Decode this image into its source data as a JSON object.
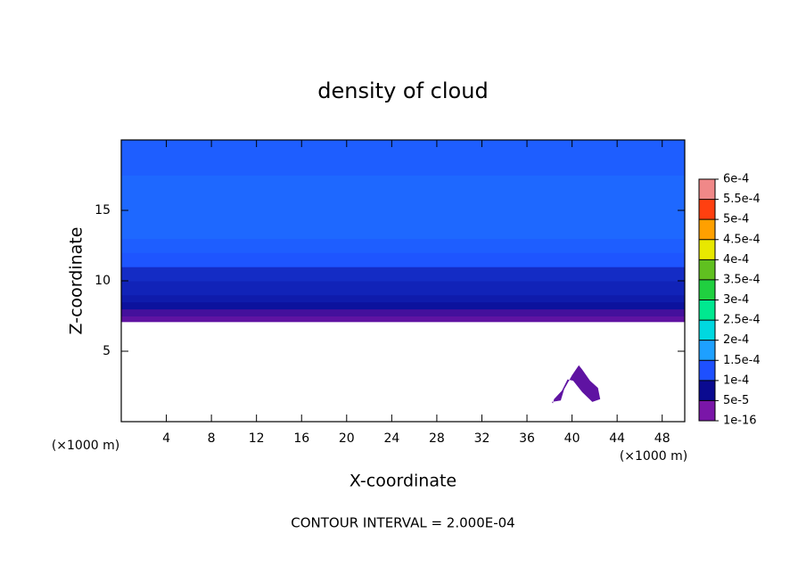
{
  "chart_data": {
    "type": "contour",
    "title": "density of cloud",
    "xlabel": "X-coordinate",
    "ylabel": "Z-coordinate",
    "x_unit": "(×1000 m)",
    "y_unit": "(×1000 m)",
    "footer": "CONTOUR INTERVAL = 2.000E-04",
    "xlim": [
      0,
      50
    ],
    "ylim": [
      0,
      20
    ],
    "xticks": [
      4,
      8,
      12,
      16,
      20,
      24,
      28,
      32,
      36,
      40,
      44,
      48
    ],
    "yticks": [
      5,
      10,
      15
    ],
    "profile": {
      "z": [
        7.1,
        7.5,
        8.0,
        8.5,
        9.0,
        10.0,
        11.0,
        12.0,
        13.0,
        17.5,
        20
      ],
      "values": [
        2e-05,
        4e-05,
        6e-05,
        7e-05,
        8e-05,
        9e-05,
        0.000105,
        0.000115,
        0.000125,
        0.000115
      ]
    },
    "patches": [
      {
        "x": [
          38.2,
          39.0,
          39.3,
          40.0,
          40.6,
          40.9,
          41.6,
          42.3,
          42.5,
          41.8,
          40.9,
          40.1,
          39.6,
          39.1,
          38.4,
          38.3
        ],
        "z": [
          1.4,
          1.5,
          2.3,
          3.3,
          4.0,
          3.7,
          2.9,
          2.4,
          1.6,
          1.4,
          2.1,
          2.9,
          3.0,
          2.2,
          1.6,
          1.3
        ],
        "value": 2e-05
      }
    ],
    "colorbar": {
      "ticks": [
        {
          "value": 1e-16,
          "label": "1e-16"
        },
        {
          "value": 5e-05,
          "label": "5e-5"
        },
        {
          "value": 0.0001,
          "label": "1e-4"
        },
        {
          "value": 0.00015,
          "label": "1.5e-4"
        },
        {
          "value": 0.0002,
          "label": "2e-4"
        },
        {
          "value": 0.00025,
          "label": "2.5e-4"
        },
        {
          "value": 0.0003,
          "label": "3e-4"
        },
        {
          "value": 0.00035,
          "label": "3.5e-4"
        },
        {
          "value": 0.0004,
          "label": "4e-4"
        },
        {
          "value": 0.00045,
          "label": "4.5e-4"
        },
        {
          "value": 0.0005,
          "label": "5e-4"
        },
        {
          "value": 0.00055,
          "label": "5.5e-4"
        },
        {
          "value": 0.0006,
          "label": "6e-4"
        }
      ],
      "colors": [
        "#7a16a8",
        "#0a0a90",
        "#1e50ff",
        "#1ea0ff",
        "#00d8e0",
        "#00e890",
        "#20d040",
        "#60c020",
        "#e8e800",
        "#ffa000",
        "#ff4010",
        "#f08888"
      ]
    }
  }
}
